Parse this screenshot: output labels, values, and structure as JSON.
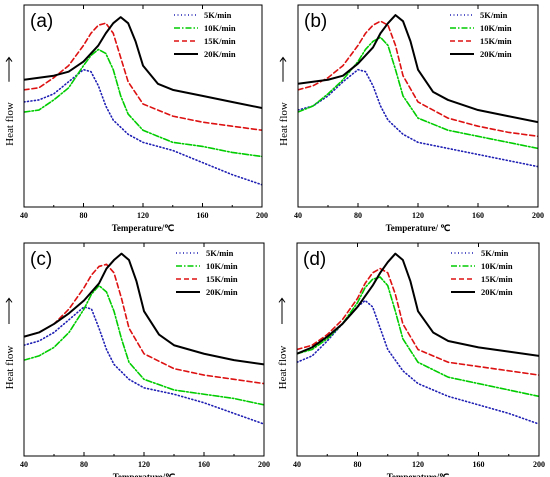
{
  "chart_data": [
    {
      "type": "line",
      "panel_label": "(a)",
      "xlabel": "Temperature/℃",
      "ylabel": "Heat flow",
      "xlim": [
        40,
        200
      ],
      "ylim": [
        0,
        100
      ],
      "xticks": [
        40,
        80,
        120,
        160,
        200
      ],
      "legend_position": "top-right",
      "series": [
        {
          "name": "5K/min",
          "color": "#1f1fb4",
          "dash": "dotted",
          "x": [
            40,
            50,
            60,
            70,
            80,
            85,
            90,
            95,
            100,
            110,
            120,
            140,
            160,
            180,
            200
          ],
          "y": [
            52,
            53,
            56,
            62,
            68,
            67,
            60,
            50,
            43,
            36,
            32,
            28,
            22,
            16,
            11
          ]
        },
        {
          "name": "10K/min",
          "color": "#00cc00",
          "dash": "dashdot",
          "x": [
            40,
            50,
            60,
            70,
            80,
            85,
            90,
            95,
            100,
            105,
            110,
            120,
            140,
            160,
            180,
            200
          ],
          "y": [
            47,
            48,
            53,
            59,
            70,
            75,
            78,
            76,
            68,
            55,
            46,
            38,
            32,
            30,
            27,
            25
          ]
        },
        {
          "name": "15K/min",
          "color": "#dd1111",
          "dash": "dashed",
          "x": [
            40,
            50,
            60,
            70,
            80,
            85,
            90,
            95,
            100,
            105,
            110,
            120,
            140,
            160,
            180,
            200
          ],
          "y": [
            58,
            59,
            64,
            70,
            80,
            86,
            90,
            91,
            86,
            74,
            62,
            51,
            45,
            42,
            40,
            38
          ]
        },
        {
          "name": "20K/min",
          "color": "#000000",
          "dash": "solid",
          "x": [
            40,
            50,
            60,
            70,
            80,
            90,
            95,
            100,
            105,
            110,
            115,
            120,
            130,
            140,
            160,
            180,
            200
          ],
          "y": [
            63,
            64,
            65,
            67,
            72,
            80,
            86,
            91,
            94,
            91,
            82,
            70,
            61,
            58,
            55,
            52,
            49
          ]
        }
      ]
    },
    {
      "type": "line",
      "panel_label": "(b)",
      "xlabel": "Temperature/ ℃",
      "ylabel": "Heat flow",
      "xlim": [
        40,
        200
      ],
      "ylim": [
        0,
        100
      ],
      "xticks": [
        40,
        80,
        120,
        160,
        200
      ],
      "legend_position": "top-right",
      "series": [
        {
          "name": "5K/min",
          "color": "#1f1fb4",
          "dash": "dotted",
          "x": [
            40,
            50,
            60,
            70,
            80,
            85,
            90,
            95,
            100,
            110,
            120,
            140,
            160,
            180,
            200
          ],
          "y": [
            48,
            50,
            55,
            62,
            68,
            67,
            60,
            50,
            43,
            36,
            32,
            29,
            26,
            23,
            20
          ]
        },
        {
          "name": "10K/min",
          "color": "#00cc00",
          "dash": "dashdot",
          "x": [
            40,
            50,
            60,
            70,
            80,
            85,
            90,
            95,
            100,
            105,
            110,
            120,
            140,
            160,
            180,
            200
          ],
          "y": [
            47,
            50,
            56,
            63,
            72,
            78,
            82,
            84,
            80,
            68,
            55,
            44,
            38,
            35,
            32,
            29
          ]
        },
        {
          "name": "15K/min",
          "color": "#dd1111",
          "dash": "dashed",
          "x": [
            40,
            50,
            60,
            70,
            80,
            85,
            90,
            95,
            100,
            105,
            110,
            120,
            140,
            160,
            180,
            200
          ],
          "y": [
            58,
            60,
            64,
            70,
            80,
            86,
            90,
            92,
            90,
            80,
            65,
            52,
            44,
            40,
            37,
            35
          ]
        },
        {
          "name": "20K/min",
          "color": "#000000",
          "dash": "solid",
          "x": [
            40,
            50,
            60,
            70,
            80,
            90,
            95,
            100,
            105,
            110,
            115,
            120,
            130,
            140,
            160,
            180,
            200
          ],
          "y": [
            61,
            62,
            63,
            65,
            71,
            79,
            86,
            91,
            95,
            92,
            82,
            68,
            57,
            53,
            48,
            45,
            42
          ]
        }
      ]
    },
    {
      "type": "line",
      "panel_label": "(c)",
      "xlabel": "Temperature/℃",
      "ylabel": "Heat flow",
      "xlim": [
        40,
        200
      ],
      "ylim": [
        0,
        100
      ],
      "xticks": [
        40,
        80,
        120,
        160,
        200
      ],
      "legend_position": "top-right",
      "series": [
        {
          "name": "5K/min",
          "color": "#1f1fb4",
          "dash": "dotted",
          "x": [
            40,
            50,
            60,
            70,
            80,
            85,
            90,
            95,
            100,
            110,
            120,
            140,
            160,
            180,
            200
          ],
          "y": [
            52,
            54,
            58,
            64,
            70,
            69,
            60,
            50,
            43,
            36,
            32,
            29,
            25,
            20,
            15
          ]
        },
        {
          "name": "10K/min",
          "color": "#00cc00",
          "dash": "dashdot",
          "x": [
            40,
            50,
            60,
            70,
            80,
            85,
            90,
            95,
            100,
            105,
            110,
            120,
            140,
            160,
            180,
            200
          ],
          "y": [
            45,
            47,
            51,
            58,
            69,
            76,
            80,
            77,
            68,
            55,
            44,
            36,
            31,
            29,
            27,
            24
          ]
        },
        {
          "name": "15K/min",
          "color": "#dd1111",
          "dash": "dashed",
          "x": [
            40,
            50,
            60,
            70,
            80,
            85,
            90,
            95,
            100,
            105,
            110,
            120,
            140,
            160,
            180,
            200
          ],
          "y": [
            56,
            58,
            62,
            69,
            79,
            85,
            89,
            90,
            86,
            74,
            60,
            48,
            41,
            38,
            36,
            34
          ]
        },
        {
          "name": "20K/min",
          "color": "#000000",
          "dash": "solid",
          "x": [
            40,
            50,
            60,
            70,
            80,
            90,
            95,
            100,
            105,
            110,
            115,
            120,
            130,
            140,
            160,
            180,
            200
          ],
          "y": [
            56,
            58,
            62,
            67,
            73,
            81,
            88,
            92,
            95,
            92,
            82,
            68,
            57,
            52,
            48,
            45,
            43
          ]
        }
      ]
    },
    {
      "type": "line",
      "panel_label": "(d)",
      "xlabel": "Temperature/℃",
      "ylabel": "Heat flow",
      "xlim": [
        40,
        200
      ],
      "ylim": [
        0,
        100
      ],
      "xticks": [
        40,
        80,
        120,
        160,
        200
      ],
      "legend_position": "top-right",
      "series": [
        {
          "name": "5K/min",
          "color": "#1f1fb4",
          "dash": "dotted",
          "x": [
            40,
            50,
            60,
            70,
            80,
            85,
            90,
            95,
            100,
            110,
            120,
            140,
            160,
            180,
            200
          ],
          "y": [
            44,
            47,
            54,
            62,
            70,
            73,
            70,
            60,
            50,
            40,
            34,
            28,
            24,
            20,
            15
          ]
        },
        {
          "name": "10K/min",
          "color": "#00cc00",
          "dash": "dashdot",
          "x": [
            40,
            50,
            60,
            70,
            80,
            85,
            90,
            95,
            100,
            105,
            110,
            120,
            140,
            160,
            180,
            200
          ],
          "y": [
            48,
            50,
            55,
            62,
            72,
            79,
            83,
            84,
            80,
            68,
            55,
            44,
            37,
            34,
            31,
            28
          ]
        },
        {
          "name": "15K/min",
          "color": "#dd1111",
          "dash": "dashed",
          "x": [
            40,
            50,
            60,
            70,
            80,
            85,
            90,
            95,
            100,
            105,
            110,
            120,
            140,
            160,
            180,
            200
          ],
          "y": [
            50,
            52,
            57,
            64,
            74,
            81,
            86,
            88,
            86,
            76,
            62,
            50,
            44,
            42,
            40,
            38
          ]
        },
        {
          "name": "20K/min",
          "color": "#000000",
          "dash": "solid",
          "x": [
            40,
            50,
            60,
            70,
            80,
            90,
            95,
            100,
            105,
            110,
            115,
            120,
            130,
            140,
            160,
            180,
            200
          ],
          "y": [
            48,
            51,
            56,
            62,
            70,
            80,
            86,
            91,
            95,
            92,
            82,
            68,
            58,
            54,
            51,
            49,
            47
          ]
        }
      ]
    }
  ]
}
